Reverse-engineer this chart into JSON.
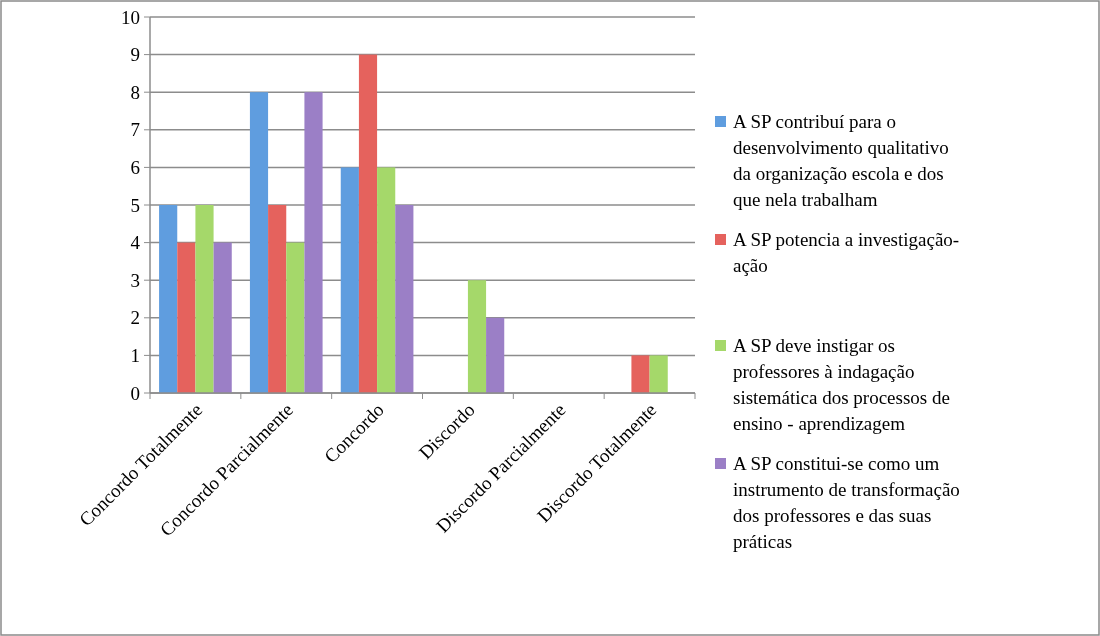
{
  "chart_data": {
    "type": "bar",
    "categories": [
      "Concordo Totalmente",
      "Concordo Parcialmente",
      "Concordo",
      "Discordo",
      "Discordo Parcialmente",
      "Discordo Totalmente"
    ],
    "series": [
      {
        "name": "A SP contribuí para o desenvolvimento qualitativo da organização escola e dos que nela trabalham",
        "color": "#5f9ddf",
        "values": [
          5,
          8,
          6,
          0,
          0,
          0
        ]
      },
      {
        "name": "A SP potencia a investigação-ação",
        "color": "#e5625d",
        "values": [
          4,
          5,
          9,
          0,
          0,
          1
        ]
      },
      {
        "name": "A SP deve instigar os professores à indagação sistemática dos processos de ensino - aprendizagem",
        "color": "#a5d86a",
        "values": [
          5,
          4,
          6,
          3,
          0,
          1
        ]
      },
      {
        "name": "A SP constitui-se como um instrumento de transformação dos professores e das suas práticas",
        "color": "#9b7fc6",
        "values": [
          4,
          8,
          5,
          2,
          0,
          0
        ]
      }
    ],
    "ylim": [
      0,
      10
    ],
    "yticks": [
      0,
      1,
      2,
      3,
      4,
      5,
      6,
      7,
      8,
      9,
      10
    ],
    "grid": "y",
    "legend": "right"
  }
}
